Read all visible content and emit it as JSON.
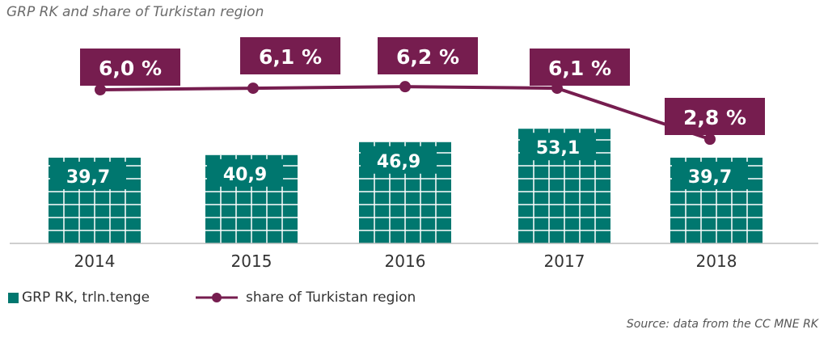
{
  "chart_data": {
    "type": "bar",
    "title": "GRP RK and share of Turkistan region",
    "categories": [
      "2014",
      "2015",
      "2016",
      "2017",
      "2018"
    ],
    "series": [
      {
        "name": "GRP RK, trln.tenge",
        "type": "bar",
        "values": [
          39.7,
          40.9,
          46.9,
          53.1,
          39.7
        ],
        "labels": [
          "39,7",
          "40,9",
          "46,9",
          "53,1",
          "39,7"
        ],
        "color": "#00776F"
      },
      {
        "name": "share of Turkistan region",
        "type": "line",
        "values": [
          6.0,
          6.1,
          6.2,
          6.1,
          2.8
        ],
        "labels": [
          "6,0 %",
          "6,1 %",
          "6,2 %",
          "6,1 %",
          "2,8 %"
        ],
        "color": "#761D4F"
      }
    ],
    "source": "Source: data from the CC MNE RK",
    "grid": false
  }
}
